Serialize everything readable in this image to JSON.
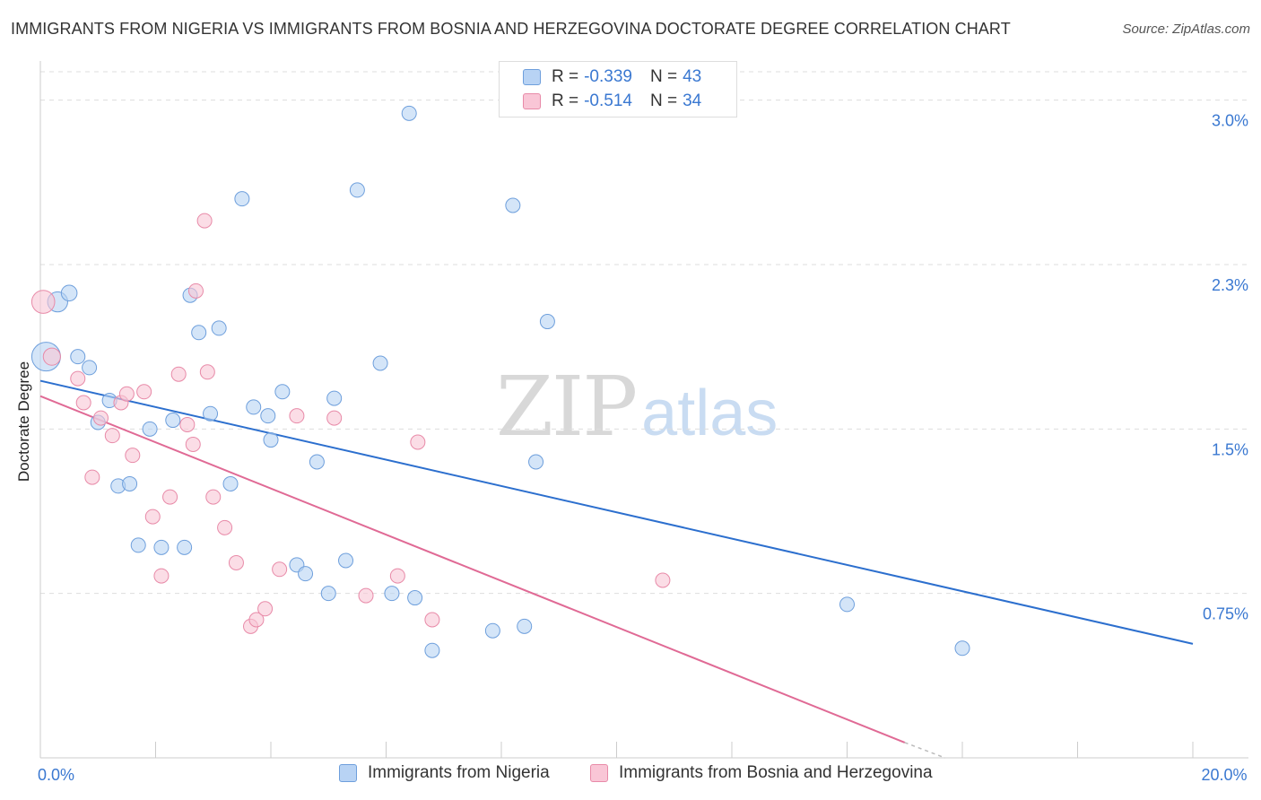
{
  "title": "IMMIGRANTS FROM NIGERIA VS IMMIGRANTS FROM BOSNIA AND HERZEGOVINA DOCTORATE DEGREE CORRELATION CHART",
  "source": "Source: ZipAtlas.com",
  "watermark": {
    "zip": "ZIP",
    "atlas": "atlas"
  },
  "legend": {
    "rows": [
      {
        "r_label": "R =",
        "r_value": "-0.339",
        "n_label": "N =",
        "n_value": "43"
      },
      {
        "r_label": "R =",
        "r_value": "-0.514",
        "n_label": "N =",
        "n_value": "34"
      }
    ]
  },
  "colors": {
    "nigeria_fill": "#b8d3f4",
    "nigeria_stroke": "#6e9fdc",
    "nigeria_line": "#2c6fce",
    "bosnia_fill": "#f9c6d6",
    "bosnia_stroke": "#e88aa8",
    "bosnia_line": "#e06a95",
    "tick_label": "#3a78d1",
    "grid": "#dddddd"
  },
  "chart_data": {
    "type": "scatter",
    "title": "IMMIGRANTS FROM NIGERIA VS IMMIGRANTS FROM BOSNIA AND HERZEGOVINA DOCTORATE DEGREE CORRELATION CHART",
    "xlabel": "",
    "ylabel": "Doctorate Degree",
    "xlim": [
      0,
      20
    ],
    "ylim": [
      0,
      3.15
    ],
    "x_tick_labels": [
      {
        "value": 0,
        "label": "0.0%"
      },
      {
        "value": 20,
        "label": "20.0%"
      }
    ],
    "y_ticks": [
      {
        "value": 0.75,
        "label": "0.75%"
      },
      {
        "value": 1.5,
        "label": "1.5%"
      },
      {
        "value": 2.25,
        "label": "2.3%"
      },
      {
        "value": 3.0,
        "label": "3.0%"
      }
    ],
    "grid": "horizontal dashed",
    "legend_position": "top-center",
    "series": [
      {
        "name": "Immigrants from Nigeria",
        "r": -0.339,
        "n": 43,
        "trend": {
          "x": [
            0,
            20
          ],
          "y": [
            1.72,
            0.52
          ]
        },
        "points": [
          {
            "x": 0.1,
            "y": 1.83,
            "s": 2.0
          },
          {
            "x": 0.3,
            "y": 2.08,
            "s": 1.4
          },
          {
            "x": 0.5,
            "y": 2.12,
            "s": 1.1
          },
          {
            "x": 0.65,
            "y": 1.83
          },
          {
            "x": 0.85,
            "y": 1.78
          },
          {
            "x": 1.0,
            "y": 1.53
          },
          {
            "x": 1.2,
            "y": 1.63
          },
          {
            "x": 1.35,
            "y": 1.24
          },
          {
            "x": 1.55,
            "y": 1.25
          },
          {
            "x": 1.7,
            "y": 0.97
          },
          {
            "x": 1.9,
            "y": 1.5
          },
          {
            "x": 2.1,
            "y": 0.96
          },
          {
            "x": 2.3,
            "y": 1.54
          },
          {
            "x": 2.5,
            "y": 0.96
          },
          {
            "x": 2.6,
            "y": 2.11
          },
          {
            "x": 2.75,
            "y": 1.94
          },
          {
            "x": 2.95,
            "y": 1.57
          },
          {
            "x": 3.1,
            "y": 1.96
          },
          {
            "x": 3.3,
            "y": 1.25
          },
          {
            "x": 3.5,
            "y": 2.55
          },
          {
            "x": 3.7,
            "y": 1.6
          },
          {
            "x": 3.95,
            "y": 1.56
          },
          {
            "x": 4.0,
            "y": 1.45
          },
          {
            "x": 4.2,
            "y": 1.67
          },
          {
            "x": 4.45,
            "y": 0.88
          },
          {
            "x": 4.6,
            "y": 0.84
          },
          {
            "x": 4.8,
            "y": 1.35
          },
          {
            "x": 5.0,
            "y": 0.75
          },
          {
            "x": 5.1,
            "y": 1.64
          },
          {
            "x": 5.3,
            "y": 0.9
          },
          {
            "x": 5.5,
            "y": 2.59
          },
          {
            "x": 5.9,
            "y": 1.8
          },
          {
            "x": 6.1,
            "y": 0.75
          },
          {
            "x": 6.4,
            "y": 2.94
          },
          {
            "x": 6.5,
            "y": 0.73
          },
          {
            "x": 6.8,
            "y": 0.49
          },
          {
            "x": 7.85,
            "y": 0.58
          },
          {
            "x": 8.2,
            "y": 2.52
          },
          {
            "x": 8.4,
            "y": 0.6
          },
          {
            "x": 8.6,
            "y": 1.35
          },
          {
            "x": 8.8,
            "y": 1.99
          },
          {
            "x": 14.0,
            "y": 0.7
          },
          {
            "x": 16.0,
            "y": 0.5
          }
        ]
      },
      {
        "name": "Immigrants from Bosnia and Herzegovina",
        "r": -0.514,
        "n": 34,
        "trend": {
          "x": [
            0,
            15
          ],
          "y": [
            1.65,
            0.07
          ]
        },
        "trend_dashed": {
          "x": [
            15,
            15.7
          ],
          "y": [
            0.07,
            0.0
          ]
        },
        "points": [
          {
            "x": 0.05,
            "y": 2.08,
            "s": 1.6
          },
          {
            "x": 0.2,
            "y": 1.83,
            "s": 1.2
          },
          {
            "x": 0.65,
            "y": 1.73
          },
          {
            "x": 0.75,
            "y": 1.62
          },
          {
            "x": 0.9,
            "y": 1.28
          },
          {
            "x": 1.05,
            "y": 1.55
          },
          {
            "x": 1.25,
            "y": 1.47
          },
          {
            "x": 1.4,
            "y": 1.62
          },
          {
            "x": 1.5,
            "y": 1.66
          },
          {
            "x": 1.6,
            "y": 1.38
          },
          {
            "x": 1.8,
            "y": 1.67
          },
          {
            "x": 1.95,
            "y": 1.1
          },
          {
            "x": 2.1,
            "y": 0.83
          },
          {
            "x": 2.25,
            "y": 1.19
          },
          {
            "x": 2.4,
            "y": 1.75
          },
          {
            "x": 2.55,
            "y": 1.52
          },
          {
            "x": 2.65,
            "y": 1.43
          },
          {
            "x": 2.7,
            "y": 2.13
          },
          {
            "x": 2.85,
            "y": 2.45
          },
          {
            "x": 2.9,
            "y": 1.76
          },
          {
            "x": 3.0,
            "y": 1.19
          },
          {
            "x": 3.2,
            "y": 1.05
          },
          {
            "x": 3.4,
            "y": 0.89
          },
          {
            "x": 3.65,
            "y": 0.6
          },
          {
            "x": 3.75,
            "y": 0.63
          },
          {
            "x": 3.9,
            "y": 0.68
          },
          {
            "x": 4.15,
            "y": 0.86
          },
          {
            "x": 4.45,
            "y": 1.56
          },
          {
            "x": 5.1,
            "y": 1.55
          },
          {
            "x": 5.65,
            "y": 0.74
          },
          {
            "x": 6.2,
            "y": 0.83
          },
          {
            "x": 6.55,
            "y": 1.44
          },
          {
            "x": 6.8,
            "y": 0.63
          },
          {
            "x": 10.8,
            "y": 0.81
          }
        ]
      }
    ]
  }
}
